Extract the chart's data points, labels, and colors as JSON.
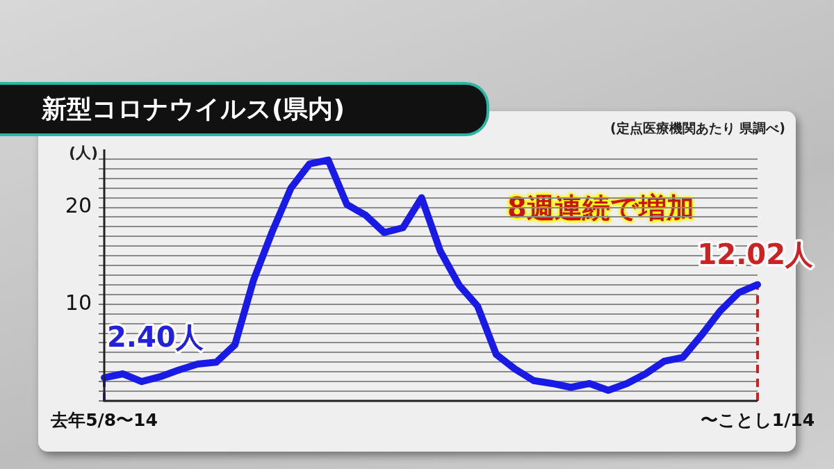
{
  "chart_data": {
    "type": "line",
    "title": "新型コロナウイルス(県内)",
    "subtitle": "(定点医療機関あたり 県調べ)",
    "ylabel": "(人)",
    "categories": [
      "去年5/8〜14",
      null,
      null,
      null,
      null,
      null,
      null,
      null,
      null,
      null,
      null,
      null,
      null,
      null,
      null,
      null,
      null,
      null,
      null,
      null,
      null,
      null,
      null,
      null,
      null,
      null,
      null,
      null,
      null,
      null,
      null,
      null,
      null,
      null,
      null,
      "〜ことし1/14"
    ],
    "series": [
      {
        "color": "#1a1ae6",
        "values": [
          2.4,
          2.8,
          2.0,
          2.5,
          3.2,
          3.8,
          4.0,
          5.8,
          12.5,
          17.5,
          22.0,
          24.5,
          24.9,
          20.3,
          19.2,
          17.4,
          17.9,
          21.0,
          15.5,
          12.0,
          9.8,
          4.8,
          3.3,
          2.1,
          1.8,
          1.4,
          1.8,
          1.1,
          1.8,
          2.8,
          4.1,
          4.5,
          6.8,
          9.3,
          11.2,
          12.02
        ]
      }
    ],
    "ylim": [
      0,
      26
    ],
    "yticks": [
      {
        "value": 0,
        "label": null
      },
      {
        "value": 1,
        "label": null
      },
      {
        "value": 2,
        "label": null
      },
      {
        "value": 3,
        "label": null
      },
      {
        "value": 4,
        "label": null
      },
      {
        "value": 5,
        "label": null
      },
      {
        "value": 6,
        "label": null
      },
      {
        "value": 7,
        "label": null
      },
      {
        "value": 8,
        "label": null
      },
      {
        "value": 9,
        "label": null
      },
      10,
      {
        "value": 11,
        "label": null
      },
      {
        "value": 12,
        "label": null
      },
      {
        "value": 13,
        "label": null
      },
      {
        "value": 14,
        "label": null
      },
      {
        "value": 15,
        "label": null
      },
      {
        "value": 16,
        "label": null
      },
      {
        "value": 17,
        "label": null
      },
      {
        "value": 18,
        "label": null
      },
      {
        "value": 19,
        "label": null
      },
      20,
      {
        "value": 21,
        "label": null
      },
      {
        "value": 22,
        "label": null
      },
      {
        "value": 23,
        "label": null
      },
      {
        "value": 24,
        "label": null
      },
      {
        "value": 25,
        "label": null
      }
    ],
    "grid": "y",
    "legend": false,
    "marker": "none",
    "line_style": "solid",
    "ref_lines": [
      {
        "axis": "x",
        "value": "去年5/8〜14",
        "color": "#2222dd",
        "line_style": "dashed"
      },
      {
        "axis": "x",
        "value": "〜ことし1/14",
        "color": "#cc2222",
        "line_style": "dashed"
      }
    ],
    "annotations": [
      "8週連続で増加",
      {
        "text": "12.02人",
        "x": "〜ことし1/14",
        "y": 12.02
      },
      {
        "text": "2.40人",
        "x": "去年5/8〜14",
        "y": 2.4
      }
    ]
  }
}
